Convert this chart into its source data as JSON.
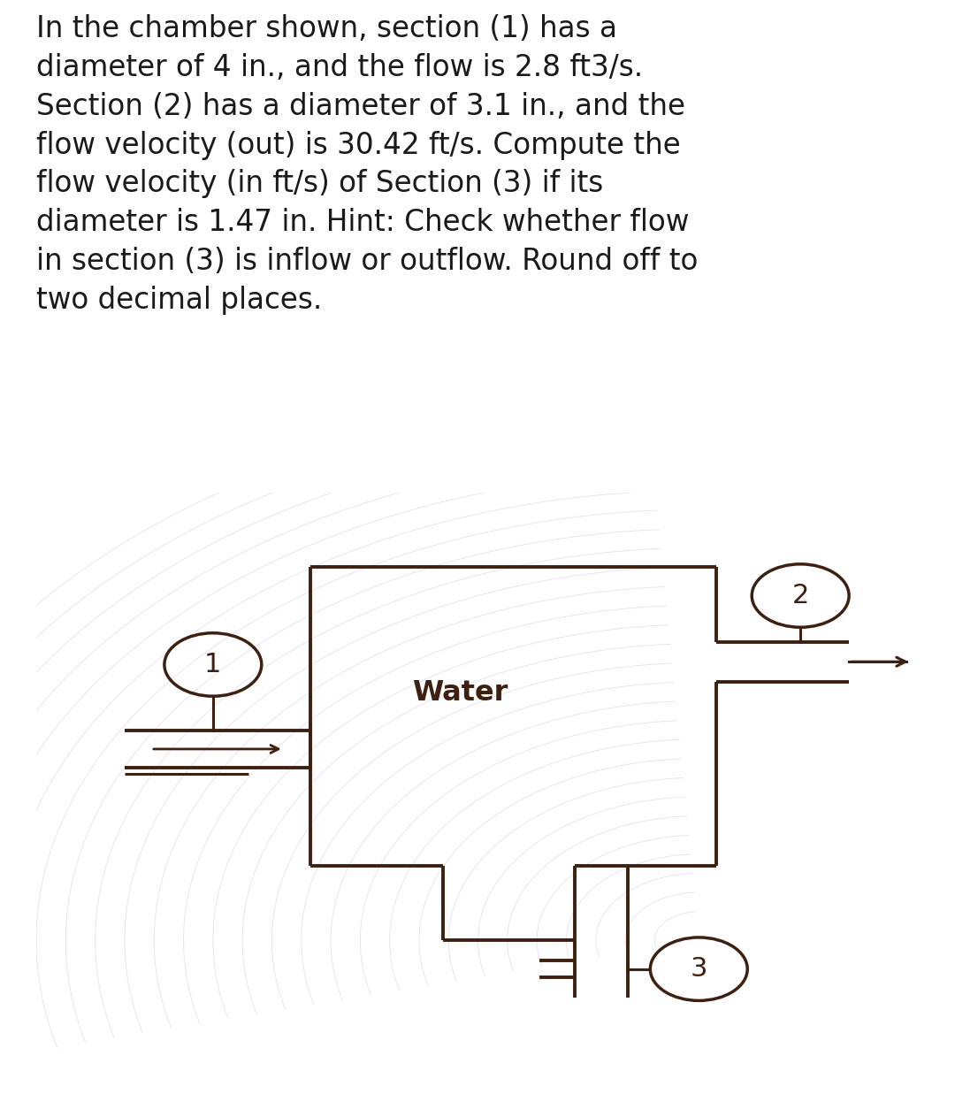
{
  "problem_text": "In the chamber shown, section (1) has a\ndiameter of 4 in., and the flow is 2.8 ft3/s.\nSection (2) has a diameter of 3.1 in., and the\nflow velocity (out) is 30.42 ft/s. Compute the\nflow velocity (in ft/s) of Section (3) if its\ndiameter is 1.47 in. Hint: Check whether flow\nin section (3) is inflow or outflow. Round off to\ntwo decimal places.",
  "water_label": "Water",
  "label_1": "1",
  "label_2": "2",
  "label_3": "3",
  "bg_color": "#ffffff",
  "diagram_bg": "#f5ede0",
  "text_color": "#1a1a1a",
  "diagram_color": "#3d2010",
  "text_fontsize": 23.5,
  "water_fontsize": 23,
  "label_fontsize": 22,
  "ripple_color": "#d8cce8",
  "ripple_alpha": 0.55
}
